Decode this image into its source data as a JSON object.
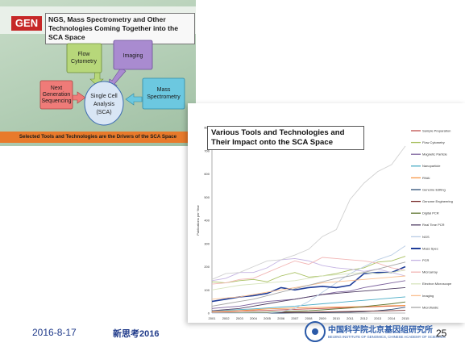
{
  "slide1": {
    "logo": "GEN",
    "title": "NGS, Mass Spectrometry and Other Technologies Coming Together into the SCA Space",
    "nodes": {
      "flow": "Flow Cytometry",
      "imaging": "Imaging",
      "ngs": "Next Generation Sequencing",
      "center": "Single Cell Analysis (SCA)",
      "mass": "Mass Spectrometry"
    },
    "footer": "Selected Tools and Technologies are the Drivers of the SCA Space",
    "colors": {
      "flow": "#b7d77a",
      "imaging": "#a98bd0",
      "ngs": "#ef7b78",
      "mass": "#6cc8e0",
      "center": "#d9e6f5"
    }
  },
  "chart_data": {
    "type": "line",
    "title": "Various Tools and Technologies and Their Impact onto the SCA Space",
    "ylabel": "Publications per Year",
    "xlabel": "",
    "ylim": [
      0,
      800
    ],
    "yticks": [
      0,
      100,
      200,
      300,
      400,
      500,
      600,
      700,
      800
    ],
    "x": [
      "2001",
      "2002",
      "2003",
      "2004",
      "2005",
      "2006",
      "2007",
      "2008",
      "2009",
      "2010",
      "2011",
      "2012",
      "2013",
      "2014",
      "2015"
    ],
    "legend_position": "right",
    "grid": false,
    "series": [
      {
        "name": "Sample Preparation",
        "color": "#c0504d",
        "values": [
          5,
          6,
          8,
          10,
          12,
          14,
          16,
          18,
          20,
          22,
          24,
          26,
          28,
          30,
          32
        ]
      },
      {
        "name": "Flow Cytometry",
        "color": "#a8c060",
        "values": [
          135,
          130,
          140,
          145,
          135,
          160,
          175,
          155,
          160,
          170,
          185,
          195,
          220,
          225,
          245
        ]
      },
      {
        "name": "Magnetic Particle",
        "color": "#7e649e",
        "values": [
          20,
          25,
          30,
          40,
          50,
          55,
          60,
          70,
          80,
          90,
          95,
          110,
          120,
          130,
          140
        ]
      },
      {
        "name": "Nanoparticle",
        "color": "#4bacc6",
        "values": [
          10,
          12,
          15,
          18,
          22,
          26,
          30,
          35,
          40,
          45,
          50,
          55,
          60,
          65,
          70
        ]
      },
      {
        "name": "RNAi",
        "color": "#f79646",
        "values": [
          5,
          8,
          10,
          14,
          18,
          20,
          22,
          24,
          25,
          26,
          27,
          28,
          30,
          32,
          33
        ]
      },
      {
        "name": "Genome Editing",
        "color": "#2c4d75",
        "values": [
          0,
          0,
          0,
          0,
          0,
          0,
          1,
          1,
          2,
          3,
          4,
          6,
          10,
          16,
          25
        ]
      },
      {
        "name": "Genome Engineering",
        "color": "#772c2a",
        "values": [
          1,
          1,
          2,
          2,
          3,
          3,
          4,
          4,
          5,
          6,
          7,
          8,
          9,
          10,
          12
        ]
      },
      {
        "name": "Digital PCR",
        "color": "#5f7530",
        "values": [
          0,
          1,
          2,
          3,
          4,
          6,
          8,
          10,
          14,
          18,
          22,
          28,
          34,
          40,
          48
        ]
      },
      {
        "name": "Real Time PCR",
        "color": "#4d3b62",
        "values": [
          10,
          15,
          20,
          30,
          40,
          50,
          60,
          70,
          80,
          85,
          90,
          95,
          100,
          105,
          110
        ]
      },
      {
        "name": "NGS",
        "color": "#b9cde5",
        "values": [
          0,
          0,
          0,
          0,
          0,
          5,
          20,
          50,
          90,
          130,
          170,
          200,
          230,
          250,
          290
        ]
      },
      {
        "name": "Mass Spec",
        "color": "#1f3d99",
        "values": [
          50,
          60,
          70,
          75,
          85,
          110,
          100,
          110,
          115,
          110,
          120,
          170,
          175,
          175,
          200
        ]
      },
      {
        "name": "PCR",
        "color": "#c5b4e3",
        "values": [
          140,
          150,
          175,
          175,
          195,
          230,
          235,
          225,
          205,
          195,
          190,
          180,
          190,
          175,
          160
        ]
      },
      {
        "name": "Microarray",
        "color": "#f2b6b5",
        "values": [
          125,
          130,
          145,
          150,
          175,
          200,
          225,
          210,
          240,
          235,
          230,
          225,
          215,
          195,
          185
        ]
      },
      {
        "name": "Electron Microscope",
        "color": "#d7e4bd",
        "values": [
          100,
          110,
          120,
          125,
          130,
          135,
          140,
          150,
          160,
          165,
          170,
          175,
          170,
          175,
          185
        ]
      },
      {
        "name": "Imaging",
        "color": "#fabf8f",
        "values": [
          60,
          65,
          70,
          80,
          90,
          100,
          110,
          120,
          130,
          135,
          140,
          145,
          150,
          155,
          160
        ]
      },
      {
        "name": "Microfluidic",
        "color": "#a6a6a6",
        "values": [
          30,
          40,
          50,
          60,
          75,
          90,
          105,
          120,
          135,
          150,
          160,
          175,
          190,
          205,
          220
        ]
      },
      {
        "name": "",
        "color": "#d0d0d0",
        "values": [
          145,
          170,
          175,
          200,
          225,
          230,
          250,
          275,
          330,
          360,
          490,
          560,
          610,
          640,
          720
        ]
      }
    ]
  },
  "footer": {
    "date": "2016-8-17",
    "event": "新思考2016",
    "org_cn": "中国科学院北京基因组研究所",
    "org_en": "BEIJING INSTITUTE OF GENOMICS, CHINESE ACADEMY OF SCIENCES",
    "page": "25"
  }
}
